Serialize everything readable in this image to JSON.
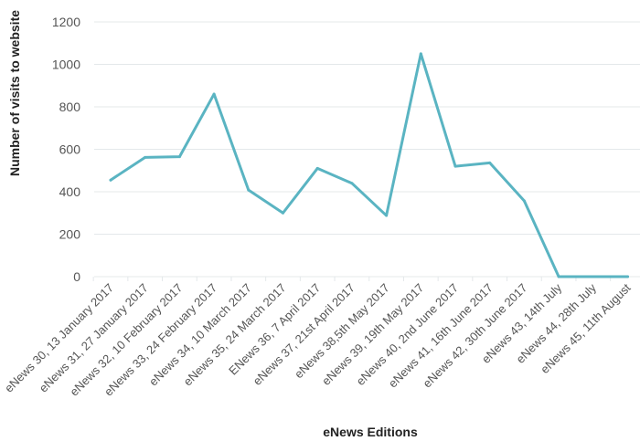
{
  "chart_data": {
    "type": "line",
    "title": "",
    "xlabel": "eNews Editions",
    "ylabel": "Number of visits to website",
    "ylim": [
      0,
      1200
    ],
    "yticks": [
      0,
      200,
      400,
      600,
      800,
      1000,
      1200
    ],
    "grid": true,
    "legend": "none",
    "line_color": "#5ab4c2",
    "grid_color": "#e4e8ea",
    "categories": [
      "eNews 30, 13 January 2017",
      "eNews 31, 27 January 2017",
      "eNews 32, 10 February 2017",
      "eNews 33, 24 February 2017",
      "eNews 34, 10 March 2017",
      "eNews 35, 24 March 2017",
      "ENews 36, 7 April 2017",
      "eNews 37, 21st April 2017",
      "eNews 38,5th May 2017",
      "eNews 39, 19th May 2017",
      "eNews 40, 2nd June 2017",
      "eNews 41, 16th June 2017",
      "eNews 42, 30th June 2017",
      "eNews 43, 14th July",
      "eNews 44, 28th July",
      "eNews 45, 11th August"
    ],
    "series": [
      {
        "values": [
          455,
          562,
          565,
          860,
          408,
          300,
          510,
          440,
          288,
          1050,
          520,
          536,
          357,
          0,
          0,
          0
        ]
      }
    ]
  }
}
